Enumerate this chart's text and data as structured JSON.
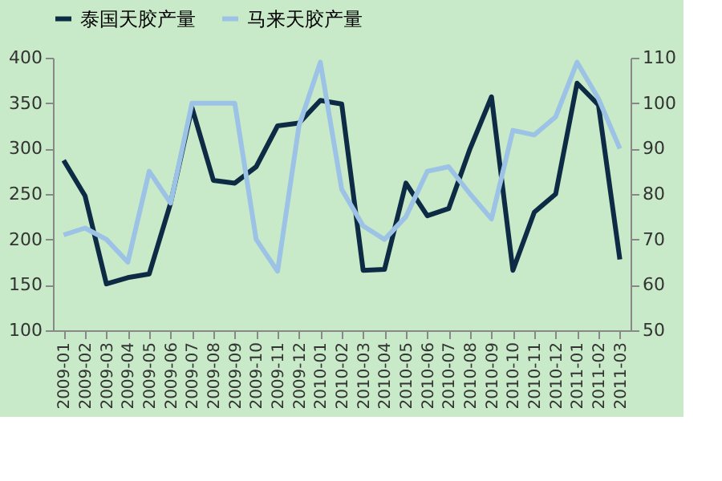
{
  "chart_data": {
    "type": "line",
    "categories": [
      "2009-01",
      "2009-02",
      "2009-03",
      "2009-04",
      "2009-05",
      "2009-06",
      "2009-07",
      "2009-08",
      "2009-09",
      "2009-10",
      "2009-11",
      "2009-12",
      "2010-01",
      "2010-02",
      "2010-03",
      "2010-04",
      "2010-05",
      "2010-06",
      "2010-07",
      "2010-08",
      "2010-09",
      "2010-10",
      "2010-11",
      "2010-12",
      "2011-01",
      "2011-02",
      "2011-03"
    ],
    "series": [
      {
        "name": "泰国天胶产量",
        "color": "#0d2b45",
        "values": [
          287,
          248,
          151,
          158,
          162,
          240,
          345,
          265,
          262,
          280,
          325,
          328,
          353,
          349,
          166,
          167,
          262,
          226,
          234,
          300,
          357,
          166,
          230,
          250,
          372,
          348,
          178
        ]
      },
      {
        "name": "马来天胶产量",
        "color": "#9cc3e6",
        "axis": "y2",
        "values": [
          71,
          72.5,
          70,
          65,
          85,
          78,
          100,
          100,
          100,
          70,
          63,
          95,
          109,
          81,
          73,
          70,
          75,
          85,
          86,
          80,
          74.5,
          94,
          93,
          97,
          109,
          101,
          90
        ]
      }
    ],
    "ylim": [
      100,
      400
    ],
    "yticks": [
      100,
      150,
      200,
      250,
      300,
      350,
      400
    ],
    "y2lim": [
      50,
      110
    ],
    "y2ticks": [
      50,
      60,
      70,
      80,
      90,
      100,
      110
    ],
    "grid": false,
    "legend": "top",
    "marker": "none",
    "line_style": "solid"
  }
}
